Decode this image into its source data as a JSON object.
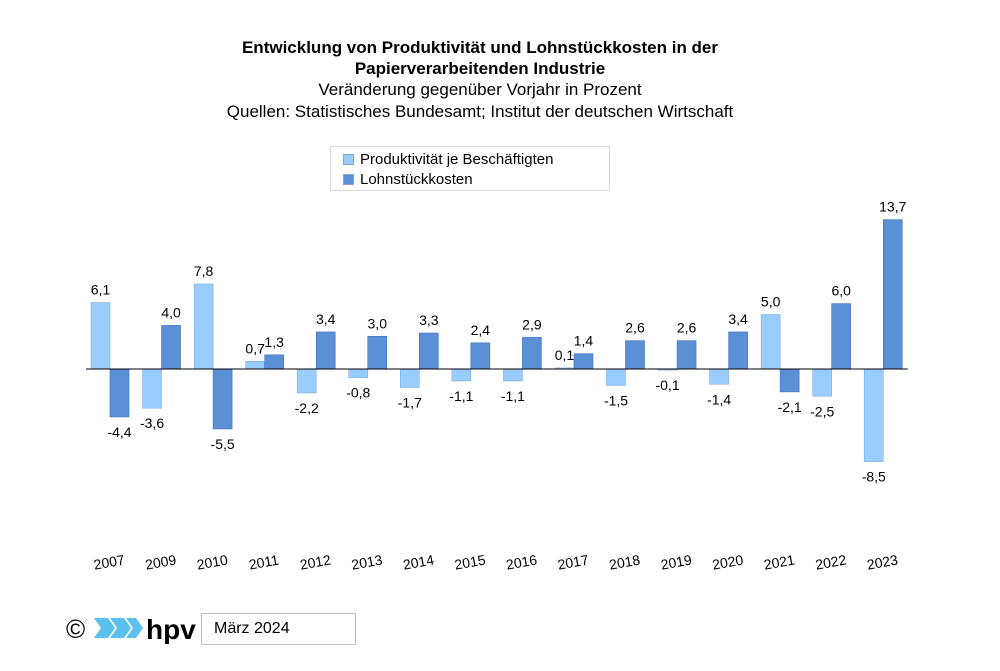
{
  "title_line1": "Entwicklung von Produktivität und Lohnstückkosten in der",
  "title_line2": "Papierverarbeitenden Industrie",
  "subtitle": "Veränderung gegenüber Vorjahr in Prozent",
  "source": "Quellen: Statistisches Bundesamt; Institut der deutschen Wirtschaft",
  "colors": {
    "series1": "#99ccff",
    "series2": "#5b8fd6",
    "axis": "#000000"
  },
  "chart_data": {
    "type": "bar",
    "categories": [
      "2007",
      "2009",
      "2010",
      "2011",
      "2012",
      "2013",
      "2014",
      "2015",
      "2016",
      "2017",
      "2018",
      "2019",
      "2020",
      "2021",
      "2022",
      "2023"
    ],
    "series": [
      {
        "name": "Produktivität je Beschäftigten",
        "values": [
          6.1,
          -3.6,
          7.8,
          0.7,
          -2.2,
          -0.8,
          -1.7,
          -1.1,
          -1.1,
          0.1,
          -1.5,
          -0.1,
          -1.4,
          5.0,
          -2.5,
          -8.5
        ],
        "labels": [
          "6,1",
          "-3,6",
          "7,8",
          "0,7",
          "-2,2",
          "-0,8",
          "-1,7",
          "-1,1",
          "-1,1",
          "0,1",
          "-1,5",
          "-0,1",
          "-1,4",
          "5,0",
          "-2,5",
          "-8,5"
        ]
      },
      {
        "name": "Lohnstückkosten",
        "values": [
          -4.4,
          4.0,
          -5.5,
          1.3,
          3.4,
          3.0,
          3.3,
          2.4,
          2.9,
          1.4,
          2.6,
          2.6,
          3.4,
          -2.1,
          6.0,
          13.7
        ],
        "labels": [
          "-4,4",
          "4,0",
          "-5,5",
          "1,3",
          "3,4",
          "3,0",
          "3,3",
          "2,4",
          "2,9",
          "1,4",
          "2,6",
          "2,6",
          "3,4",
          "-2,1",
          "6,0",
          "13,7"
        ]
      }
    ],
    "legend_position": "top-center",
    "grid": false
  },
  "footer": {
    "logo_text": "hpv",
    "copyright": "©",
    "date": "März 2024"
  }
}
